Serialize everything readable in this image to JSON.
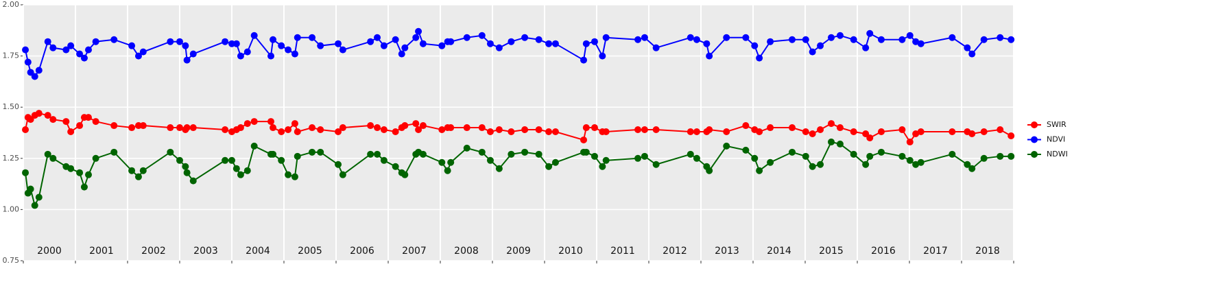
{
  "chart_data": {
    "type": "line",
    "x": [
      2000.04,
      2000.09,
      2000.14,
      2000.22,
      2000.3,
      2000.47,
      2000.57,
      2000.82,
      2000.91,
      2001.08,
      2001.17,
      2001.25,
      2001.39,
      2001.74,
      2002.08,
      2002.21,
      2002.3,
      2002.82,
      2003.0,
      2003.11,
      2003.14,
      2003.26,
      2003.87,
      2004.0,
      2004.09,
      2004.17,
      2004.3,
      2004.43,
      2004.75,
      2004.79,
      2004.95,
      2005.08,
      2005.21,
      2005.26,
      2005.54,
      2005.7,
      2006.04,
      2006.13,
      2006.66,
      2006.79,
      2006.92,
      2007.14,
      2007.26,
      2007.32,
      2007.53,
      2007.58,
      2007.67,
      2008.03,
      2008.14,
      2008.2,
      2008.51,
      2008.8,
      2008.96,
      2009.13,
      2009.36,
      2009.62,
      2009.89,
      2010.08,
      2010.21,
      2010.75,
      2010.8,
      2010.96,
      2011.11,
      2011.18,
      2011.79,
      2011.92,
      2012.14,
      2012.8,
      2012.92,
      2013.11,
      2013.16,
      2013.49,
      2013.86,
      2014.03,
      2014.12,
      2014.33,
      2014.75,
      2015.01,
      2015.14,
      2015.29,
      2015.5,
      2015.67,
      2015.93,
      2016.16,
      2016.24,
      2016.46,
      2016.86,
      2017.01,
      2017.12,
      2017.22,
      2017.82,
      2018.11,
      2018.2,
      2018.43,
      2018.74,
      2018.95
    ],
    "series": [
      {
        "name": "SWIR",
        "color": "#ff0000",
        "values": [
          1.39,
          1.45,
          1.44,
          1.46,
          1.47,
          1.46,
          1.44,
          1.43,
          1.38,
          1.41,
          1.45,
          1.45,
          1.43,
          1.41,
          1.4,
          1.41,
          1.41,
          1.4,
          1.4,
          1.39,
          1.4,
          1.4,
          1.39,
          1.38,
          1.39,
          1.4,
          1.42,
          1.43,
          1.43,
          1.4,
          1.38,
          1.39,
          1.42,
          1.38,
          1.4,
          1.39,
          1.38,
          1.4,
          1.41,
          1.4,
          1.39,
          1.38,
          1.4,
          1.41,
          1.42,
          1.39,
          1.41,
          1.39,
          1.4,
          1.4,
          1.4,
          1.4,
          1.38,
          1.39,
          1.38,
          1.39,
          1.39,
          1.38,
          1.38,
          1.34,
          1.4,
          1.4,
          1.38,
          1.38,
          1.39,
          1.39,
          1.39,
          1.38,
          1.38,
          1.38,
          1.39,
          1.38,
          1.41,
          1.39,
          1.38,
          1.4,
          1.4,
          1.38,
          1.37,
          1.39,
          1.42,
          1.4,
          1.38,
          1.37,
          1.35,
          1.38,
          1.39,
          1.33,
          1.37,
          1.38,
          1.38,
          1.38,
          1.37,
          1.38,
          1.39,
          1.36
        ]
      },
      {
        "name": "NDVI",
        "color": "#0000ff",
        "values": [
          1.78,
          1.72,
          1.67,
          1.65,
          1.68,
          1.82,
          1.79,
          1.78,
          1.8,
          1.76,
          1.74,
          1.78,
          1.82,
          1.83,
          1.8,
          1.75,
          1.77,
          1.82,
          1.82,
          1.8,
          1.73,
          1.76,
          1.82,
          1.81,
          1.81,
          1.75,
          1.77,
          1.85,
          1.75,
          1.83,
          1.8,
          1.78,
          1.76,
          1.84,
          1.84,
          1.8,
          1.81,
          1.78,
          1.82,
          1.84,
          1.8,
          1.83,
          1.76,
          1.79,
          1.84,
          1.87,
          1.81,
          1.8,
          1.82,
          1.82,
          1.84,
          1.85,
          1.81,
          1.79,
          1.82,
          1.84,
          1.83,
          1.81,
          1.81,
          1.73,
          1.81,
          1.82,
          1.75,
          1.84,
          1.83,
          1.84,
          1.79,
          1.84,
          1.83,
          1.81,
          1.75,
          1.84,
          1.84,
          1.8,
          1.74,
          1.82,
          1.83,
          1.83,
          1.77,
          1.8,
          1.84,
          1.85,
          1.83,
          1.79,
          1.86,
          1.83,
          1.83,
          1.85,
          1.82,
          1.81,
          1.84,
          1.79,
          1.76,
          1.83,
          1.84,
          1.83
        ]
      },
      {
        "name": "NDWI",
        "color": "#006400",
        "values": [
          1.18,
          1.08,
          1.1,
          1.02,
          1.06,
          1.27,
          1.25,
          1.21,
          1.2,
          1.18,
          1.11,
          1.17,
          1.25,
          1.28,
          1.19,
          1.16,
          1.19,
          1.28,
          1.24,
          1.21,
          1.18,
          1.14,
          1.24,
          1.24,
          1.2,
          1.17,
          1.19,
          1.31,
          1.27,
          1.27,
          1.24,
          1.17,
          1.16,
          1.26,
          1.28,
          1.28,
          1.22,
          1.17,
          1.27,
          1.27,
          1.24,
          1.21,
          1.18,
          1.17,
          1.27,
          1.28,
          1.27,
          1.23,
          1.19,
          1.23,
          1.3,
          1.28,
          1.24,
          1.2,
          1.27,
          1.28,
          1.27,
          1.21,
          1.23,
          1.28,
          1.28,
          1.26,
          1.21,
          1.24,
          1.25,
          1.26,
          1.22,
          1.27,
          1.25,
          1.21,
          1.19,
          1.31,
          1.29,
          1.25,
          1.19,
          1.23,
          1.28,
          1.26,
          1.21,
          1.22,
          1.33,
          1.32,
          1.27,
          1.22,
          1.26,
          1.28,
          1.26,
          1.24,
          1.22,
          1.23,
          1.27,
          1.22,
          1.2,
          1.25,
          1.26,
          1.26
        ]
      }
    ],
    "xlim": [
      2000,
      2019
    ],
    "xticks": [
      {
        "value": 2000.5,
        "label": "2000"
      },
      {
        "value": 2001.5,
        "label": "2001"
      },
      {
        "value": 2002.5,
        "label": "2002"
      },
      {
        "value": 2003.5,
        "label": "2003"
      },
      {
        "value": 2004.5,
        "label": "2004"
      },
      {
        "value": 2005.5,
        "label": "2005"
      },
      {
        "value": 2006.5,
        "label": "2006"
      },
      {
        "value": 2007.5,
        "label": "2007"
      },
      {
        "value": 2008.5,
        "label": "2008"
      },
      {
        "value": 2009.5,
        "label": "2009"
      },
      {
        "value": 2010.5,
        "label": "2010"
      },
      {
        "value": 2011.5,
        "label": "2011"
      },
      {
        "value": 2012.5,
        "label": "2012"
      },
      {
        "value": 2013.5,
        "label": "2013"
      },
      {
        "value": 2014.5,
        "label": "2014"
      },
      {
        "value": 2015.5,
        "label": "2015"
      },
      {
        "value": 2016.5,
        "label": "2016"
      },
      {
        "value": 2017.5,
        "label": "2017"
      },
      {
        "value": 2018.5,
        "label": "2018"
      }
    ],
    "xgrid": [
      2000,
      2001,
      2002,
      2003,
      2004,
      2005,
      2006,
      2007,
      2008,
      2009,
      2010,
      2011,
      2012,
      2013,
      2014,
      2015,
      2016,
      2017,
      2018,
      2019
    ],
    "ylim": [
      0.75,
      2
    ],
    "yticks": [
      0.75,
      {
        "value": 1,
        "label": "1.00"
      },
      1.25,
      {
        "value": 1.5,
        "label": "1.50"
      },
      1.75,
      {
        "value": 2,
        "label": "2.00"
      }
    ],
    "grid": true,
    "legend": "right"
  }
}
